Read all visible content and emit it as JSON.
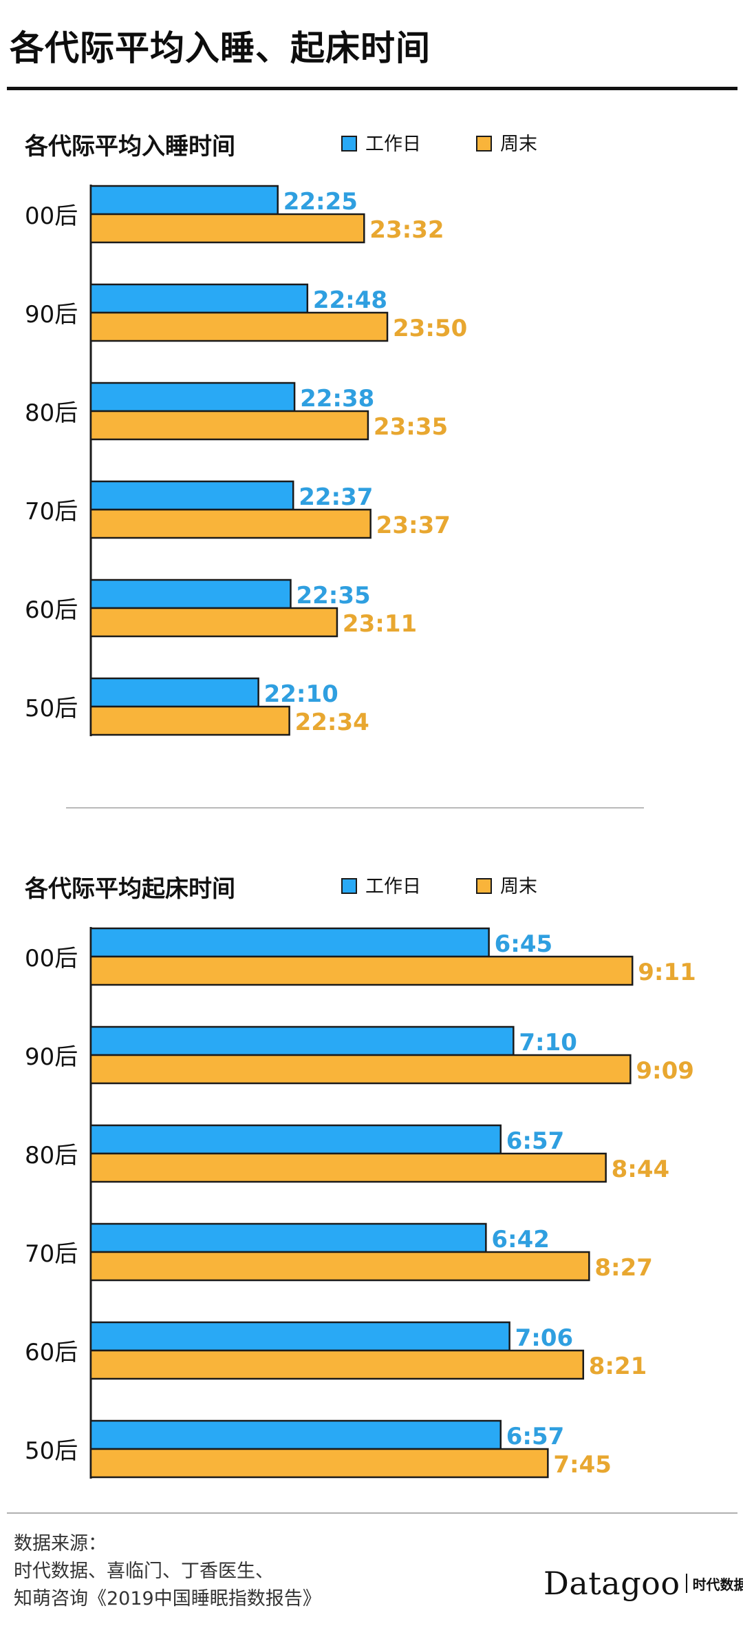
{
  "page": {
    "title": "各代际平均入睡、起床时间"
  },
  "legend": {
    "weekday": "工作日",
    "weekend": "周末"
  },
  "colors": {
    "weekday": "#29a9f5",
    "weekend": "#f9b43a",
    "weekday_text": "#2f9fe0",
    "weekend_text": "#e8a730",
    "outline": "#1a1a1a"
  },
  "chart_data": [
    {
      "type": "bar",
      "title": "各代际平均入睡时间",
      "categories": [
        "00后",
        "90后",
        "80后",
        "70后",
        "60后",
        "50后"
      ],
      "series": [
        {
          "name": "工作日",
          "values": [
            "22:25",
            "22:48",
            "22:38",
            "22:37",
            "22:35",
            "22:10"
          ]
        },
        {
          "name": "周末",
          "values": [
            "23:32",
            "23:50",
            "23:35",
            "23:37",
            "23:11",
            "22:34"
          ]
        }
      ]
    },
    {
      "type": "bar",
      "title": "各代际平均起床时间",
      "categories": [
        "00后",
        "90后",
        "80后",
        "70后",
        "60后",
        "50后"
      ],
      "series": [
        {
          "name": "工作日",
          "values": [
            "6:45",
            "7:10",
            "6:57",
            "6:42",
            "7:06",
            "6:57"
          ]
        },
        {
          "name": "周末",
          "values": [
            "9:11",
            "9:09",
            "8:44",
            "8:27",
            "8:21",
            "7:45"
          ]
        }
      ]
    }
  ],
  "footer": {
    "source_label": "数据来源：",
    "source_line1": "时代数据、喜临门、丁香医生、",
    "source_line2": "知萌咨询《2019中国睡眠指数报告》",
    "logo_word": "Datagoo",
    "logo_cn": "时代数据"
  }
}
